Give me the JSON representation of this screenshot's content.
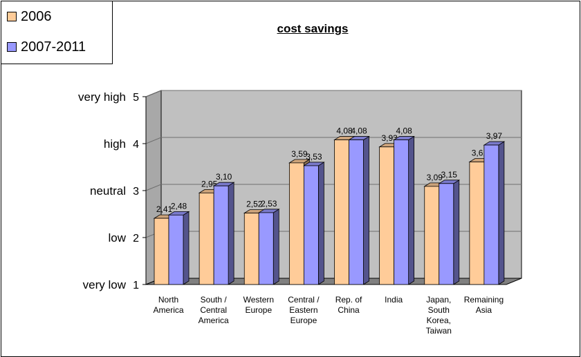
{
  "chart_data": {
    "type": "bar",
    "title": "cost savings",
    "categories": [
      [
        "North",
        "America"
      ],
      [
        "South /",
        "Central",
        "America"
      ],
      [
        "Western",
        "Europe"
      ],
      [
        "Central /",
        "Eastern",
        "Europe"
      ],
      [
        "Rep. of",
        "China"
      ],
      [
        "India"
      ],
      [
        "Japan,",
        "South",
        "Korea,",
        "Taiwan"
      ],
      [
        "Remaining",
        "Asia"
      ]
    ],
    "series": [
      {
        "name": "2006",
        "color": "#FFCC99",
        "values": [
          2.41,
          2.95,
          2.52,
          3.59,
          4.08,
          3.93,
          3.09,
          3.61
        ],
        "labels": [
          "2,41",
          "2,95",
          "2,52",
          "3,59",
          "4,08",
          "3,93",
          "3,09",
          "3,61"
        ]
      },
      {
        "name": "2007-2011",
        "color": "#9999FF",
        "values": [
          2.48,
          3.1,
          2.53,
          3.53,
          4.08,
          4.08,
          3.15,
          3.97
        ],
        "labels": [
          "2,48",
          "3,10",
          "2,53",
          "3,53",
          "4,08",
          "4,08",
          "3,15",
          "3,97"
        ]
      }
    ],
    "ylim": [
      1,
      5
    ],
    "yticks": [
      1,
      2,
      3,
      4,
      5
    ],
    "ytick_labels": [
      "very low",
      "low",
      "neutral",
      "high",
      "very high"
    ],
    "grid": true,
    "legend_position": "top-left",
    "style": "3d-clustered-column",
    "wall_color": "#C0C0C0",
    "floor_color": "#808080"
  }
}
